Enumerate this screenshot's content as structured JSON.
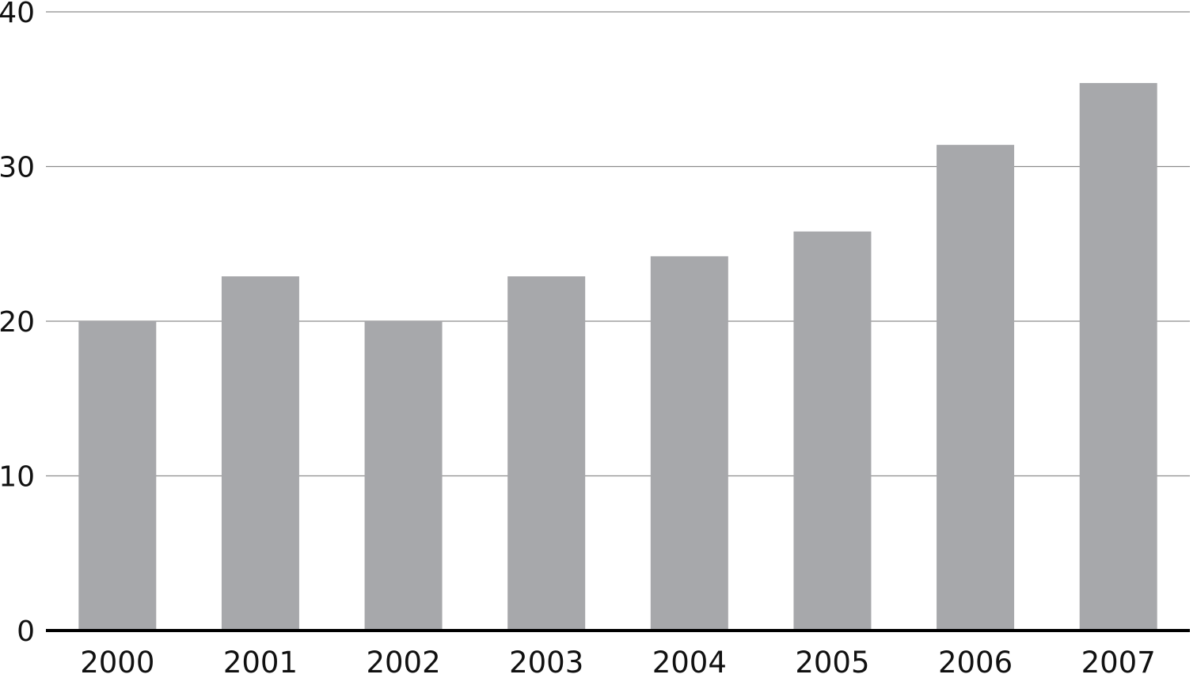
{
  "chart_data": {
    "type": "bar",
    "categories": [
      "2000",
      "2001",
      "2002",
      "2003",
      "2004",
      "2005",
      "2006",
      "2007"
    ],
    "values": [
      20,
      22.9,
      20,
      22.9,
      24.2,
      25.8,
      31.4,
      35.4
    ],
    "title": "",
    "xlabel": "",
    "ylabel": "",
    "ylim": [
      0,
      40
    ],
    "yticks": [
      0,
      10,
      20,
      30,
      40
    ],
    "grid": true,
    "bar_color": "#a7a8ab",
    "grid_color": "#8c8c8c",
    "axis_color": "#000000"
  }
}
